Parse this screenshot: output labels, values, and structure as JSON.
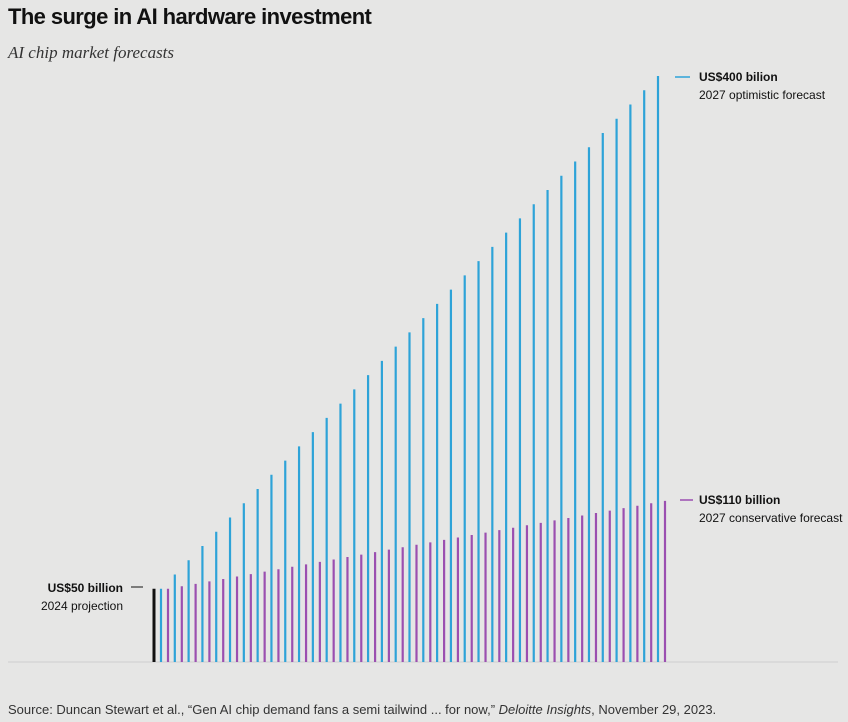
{
  "title": "The surge in AI hardware investment",
  "subtitle": "AI chip market forecasts",
  "chart_data": {
    "type": "bar",
    "title": "The surge in AI hardware investment",
    "subtitle": "AI chip market forecasts",
    "xlabel": "",
    "ylabel": "",
    "grid": false,
    "ylim": [
      0,
      400
    ],
    "start": {
      "value": 50,
      "label": "US$50 billion",
      "sublabel": "2024 projection",
      "color": "#111111"
    },
    "series": [
      {
        "name": "2027 optimistic forecast",
        "start": 50,
        "end": 400,
        "bars": 37,
        "color": "#2ea3d8",
        "label": "US$400 bilion",
        "sublabel": "2027 optimistic forecast"
      },
      {
        "name": "2027 conservative forecast",
        "start": 50,
        "end": 110,
        "bars": 37,
        "color": "#9b4fb0",
        "label": "US$110 billion",
        "sublabel": "2027 conservative forecast"
      }
    ]
  },
  "source": {
    "prefix": "Source: Duncan Stewart et al., “Gen AI chip demand fans a semi tailwind ... for now,” ",
    "publication": "Deloitte Insights",
    "suffix": ", November 29, 2023."
  }
}
